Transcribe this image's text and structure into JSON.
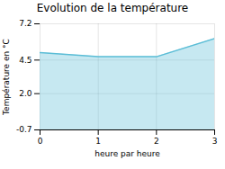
{
  "chart_data": {
    "type": "area",
    "title": "Evolution de la température",
    "xlabel": "heure par heure",
    "ylabel": "Température en °C",
    "x": [
      0,
      1,
      2,
      3
    ],
    "values": [
      5.05,
      4.75,
      4.75,
      6.1
    ],
    "color": "#5bbdd6",
    "xlim": [
      0,
      3
    ],
    "xticks": [
      0,
      1,
      2,
      3
    ],
    "ylim": [
      -0.7,
      7.2
    ],
    "yticks": [
      -0.7,
      {
        "value": 2,
        "label": "2.0"
      },
      4.5,
      7.2
    ],
    "grid": true
  }
}
